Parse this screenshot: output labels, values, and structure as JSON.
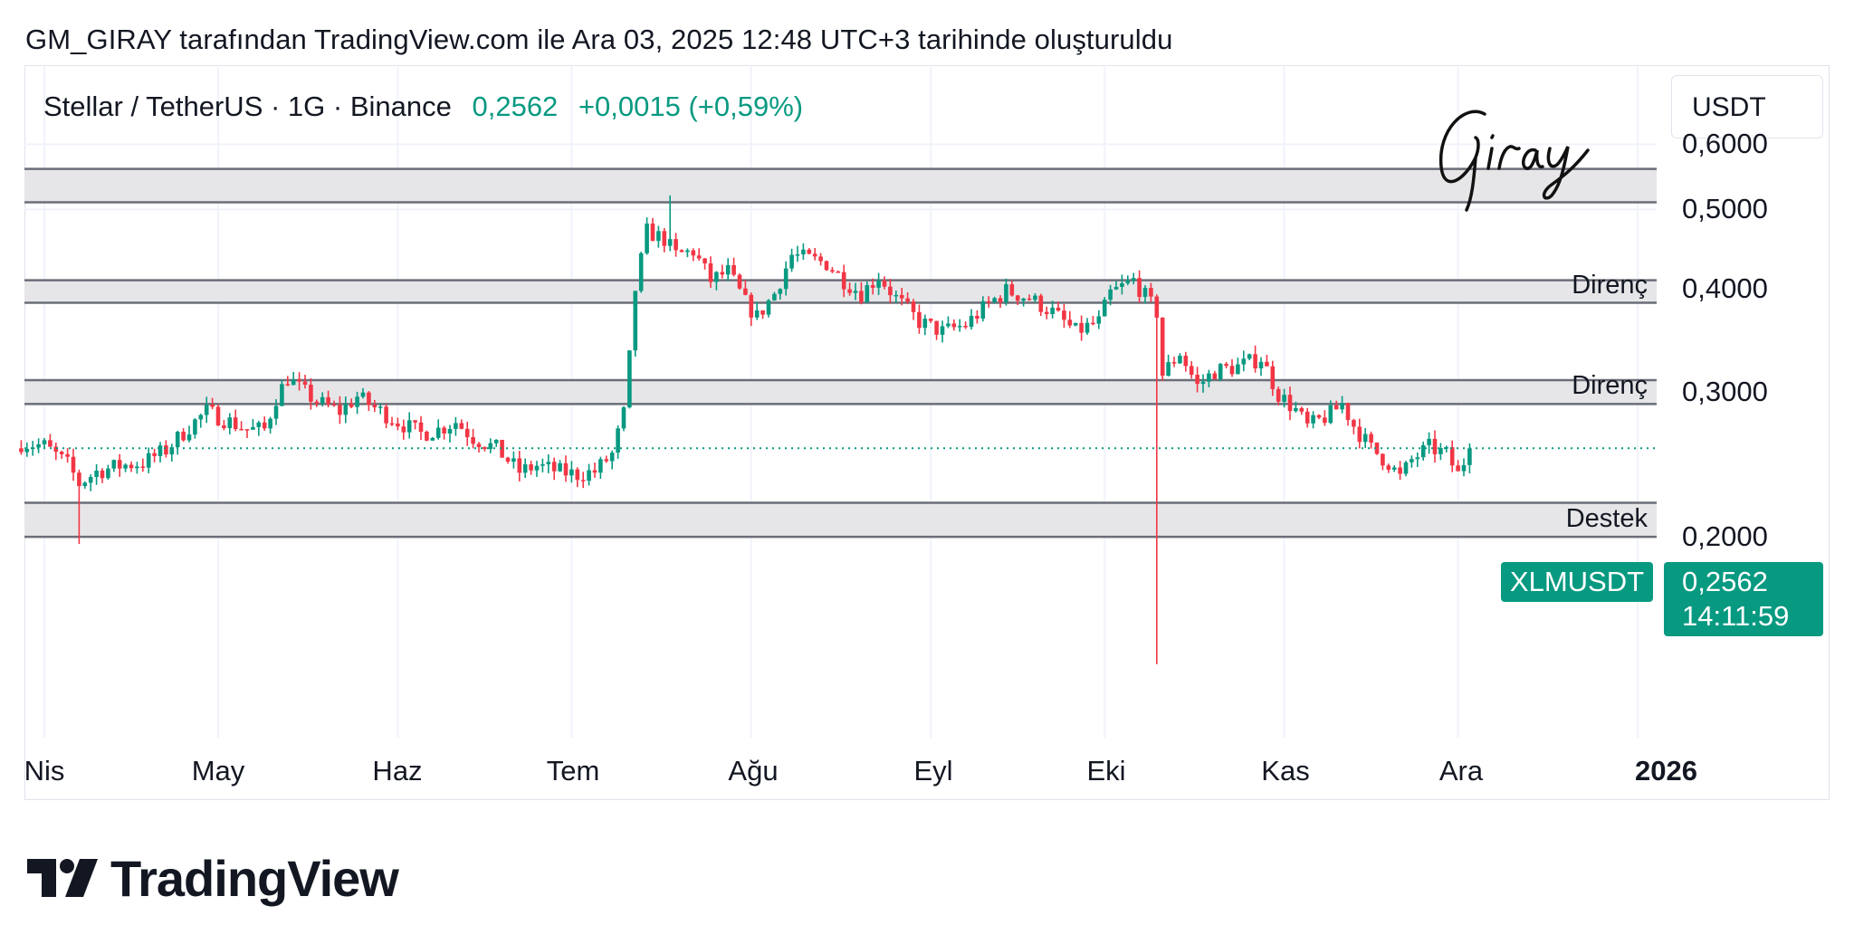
{
  "header": {
    "caption": "GM_GIRAY tarafından TradingView.com ile Ara 03, 2025 12:48 UTC+3 tarihinde oluşturuldu"
  },
  "symbol": {
    "name": "Stellar / TetherUS · 1G · Binance",
    "price": "0,2562",
    "change": "+0,0015 (+0,59%)"
  },
  "currency_button": "USDT",
  "signature": "Giray",
  "price_axis": {
    "labels": [
      "0,6000",
      "0,5000",
      "0,4000",
      "0,3000",
      "0,2000"
    ]
  },
  "time_axis": {
    "labels": [
      "Nis",
      "May",
      "Haz",
      "Tem",
      "Ağu",
      "Eyl",
      "Eki",
      "Kas",
      "Ara",
      "2026"
    ]
  },
  "zones": {
    "labels": [
      "Direnç",
      "Direnç",
      "Destek"
    ]
  },
  "badges": {
    "symbol": "XLMUSDT",
    "price": "0,2562",
    "countdown": "14:11:59"
  },
  "logo": {
    "text": "TradingView"
  },
  "colors": {
    "up": "#089981",
    "down": "#f23645",
    "zone_fill": "#e6e6e8",
    "zone_border": "#6b6e78",
    "grid": "#f0f3fa"
  },
  "chart_data": {
    "type": "candlestick",
    "scale": "log",
    "y_ticks": [
      0.6,
      0.5,
      0.4,
      0.3,
      0.2
    ],
    "x_ticks": [
      "Nis",
      "May",
      "Haz",
      "Tem",
      "Ağu",
      "Eyl",
      "Eki",
      "Kas",
      "Ara",
      "2026"
    ],
    "current_price": 0.2562,
    "zones": [
      {
        "label": "",
        "low": 0.51,
        "high": 0.56
      },
      {
        "label": "Direnç",
        "low": 0.385,
        "high": 0.41
      },
      {
        "label": "Direnç",
        "low": 0.29,
        "high": 0.31
      },
      {
        "label": "Destek",
        "low": 0.2,
        "high": 0.22
      }
    ],
    "close_path": [
      [
        "2025-03-28",
        0.26
      ],
      [
        "2025-04-01",
        0.258
      ],
      [
        "2025-04-05",
        0.245
      ],
      [
        "2025-04-07",
        0.232
      ],
      [
        "2025-04-10",
        0.24
      ],
      [
        "2025-04-14",
        0.244
      ],
      [
        "2025-04-18",
        0.246
      ],
      [
        "2025-04-22",
        0.255
      ],
      [
        "2025-04-26",
        0.272
      ],
      [
        "2025-04-29",
        0.284
      ],
      [
        "2025-05-02",
        0.278
      ],
      [
        "2025-05-06",
        0.27
      ],
      [
        "2025-05-09",
        0.27
      ],
      [
        "2025-05-11",
        0.295
      ],
      [
        "2025-05-13",
        0.312
      ],
      [
        "2025-05-15",
        0.303
      ],
      [
        "2025-05-18",
        0.292
      ],
      [
        "2025-05-22",
        0.284
      ],
      [
        "2025-05-25",
        0.296
      ],
      [
        "2025-05-28",
        0.287
      ],
      [
        "2025-06-01",
        0.276
      ],
      [
        "2025-06-05",
        0.267
      ],
      [
        "2025-06-08",
        0.27
      ],
      [
        "2025-06-11",
        0.276
      ],
      [
        "2025-06-14",
        0.264
      ],
      [
        "2025-06-18",
        0.256
      ],
      [
        "2025-06-22",
        0.24
      ],
      [
        "2025-06-25",
        0.244
      ],
      [
        "2025-06-29",
        0.24
      ],
      [
        "2025-07-02",
        0.238
      ],
      [
        "2025-07-05",
        0.24
      ],
      [
        "2025-07-08",
        0.252
      ],
      [
        "2025-07-10",
        0.282
      ],
      [
        "2025-07-11",
        0.33
      ],
      [
        "2025-07-12",
        0.4
      ],
      [
        "2025-07-14",
        0.47
      ],
      [
        "2025-07-17",
        0.46
      ],
      [
        "2025-07-19",
        0.44
      ],
      [
        "2025-07-22",
        0.445
      ],
      [
        "2025-07-25",
        0.41
      ],
      [
        "2025-07-28",
        0.42
      ],
      [
        "2025-07-31",
        0.385
      ],
      [
        "2025-08-02",
        0.37
      ],
      [
        "2025-08-05",
        0.395
      ],
      [
        "2025-08-08",
        0.44
      ],
      [
        "2025-08-11",
        0.435
      ],
      [
        "2025-08-14",
        0.43
      ],
      [
        "2025-08-17",
        0.41
      ],
      [
        "2025-08-20",
        0.395
      ],
      [
        "2025-08-23",
        0.415
      ],
      [
        "2025-08-26",
        0.39
      ],
      [
        "2025-08-30",
        0.365
      ],
      [
        "2025-09-03",
        0.355
      ],
      [
        "2025-09-07",
        0.362
      ],
      [
        "2025-09-11",
        0.384
      ],
      [
        "2025-09-14",
        0.398
      ],
      [
        "2025-09-18",
        0.39
      ],
      [
        "2025-09-22",
        0.375
      ],
      [
        "2025-09-26",
        0.355
      ],
      [
        "2025-09-30",
        0.365
      ],
      [
        "2025-10-02",
        0.395
      ],
      [
        "2025-10-06",
        0.41
      ],
      [
        "2025-10-08",
        0.392
      ],
      [
        "2025-10-10",
        0.375
      ],
      [
        "2025-10-11",
        0.315
      ],
      [
        "2025-10-14",
        0.335
      ],
      [
        "2025-10-17",
        0.305
      ],
      [
        "2025-10-20",
        0.318
      ],
      [
        "2025-10-24",
        0.322
      ],
      [
        "2025-10-28",
        0.33
      ],
      [
        "2025-10-31",
        0.298
      ],
      [
        "2025-11-03",
        0.285
      ],
      [
        "2025-11-05",
        0.272
      ],
      [
        "2025-11-09",
        0.282
      ],
      [
        "2025-11-11",
        0.29
      ],
      [
        "2025-11-13",
        0.273
      ],
      [
        "2025-11-16",
        0.256
      ],
      [
        "2025-11-19",
        0.246
      ],
      [
        "2025-11-21",
        0.236
      ],
      [
        "2025-11-23",
        0.248
      ],
      [
        "2025-11-26",
        0.257
      ],
      [
        "2025-11-29",
        0.252
      ],
      [
        "2025-12-01",
        0.238
      ],
      [
        "2025-12-03",
        0.2562
      ]
    ],
    "notable_wicks": [
      {
        "date": "2025-04-07",
        "low": 0.196
      },
      {
        "date": "2025-07-18",
        "high": 0.52
      },
      {
        "date": "2025-10-10",
        "low": 0.14
      }
    ]
  }
}
